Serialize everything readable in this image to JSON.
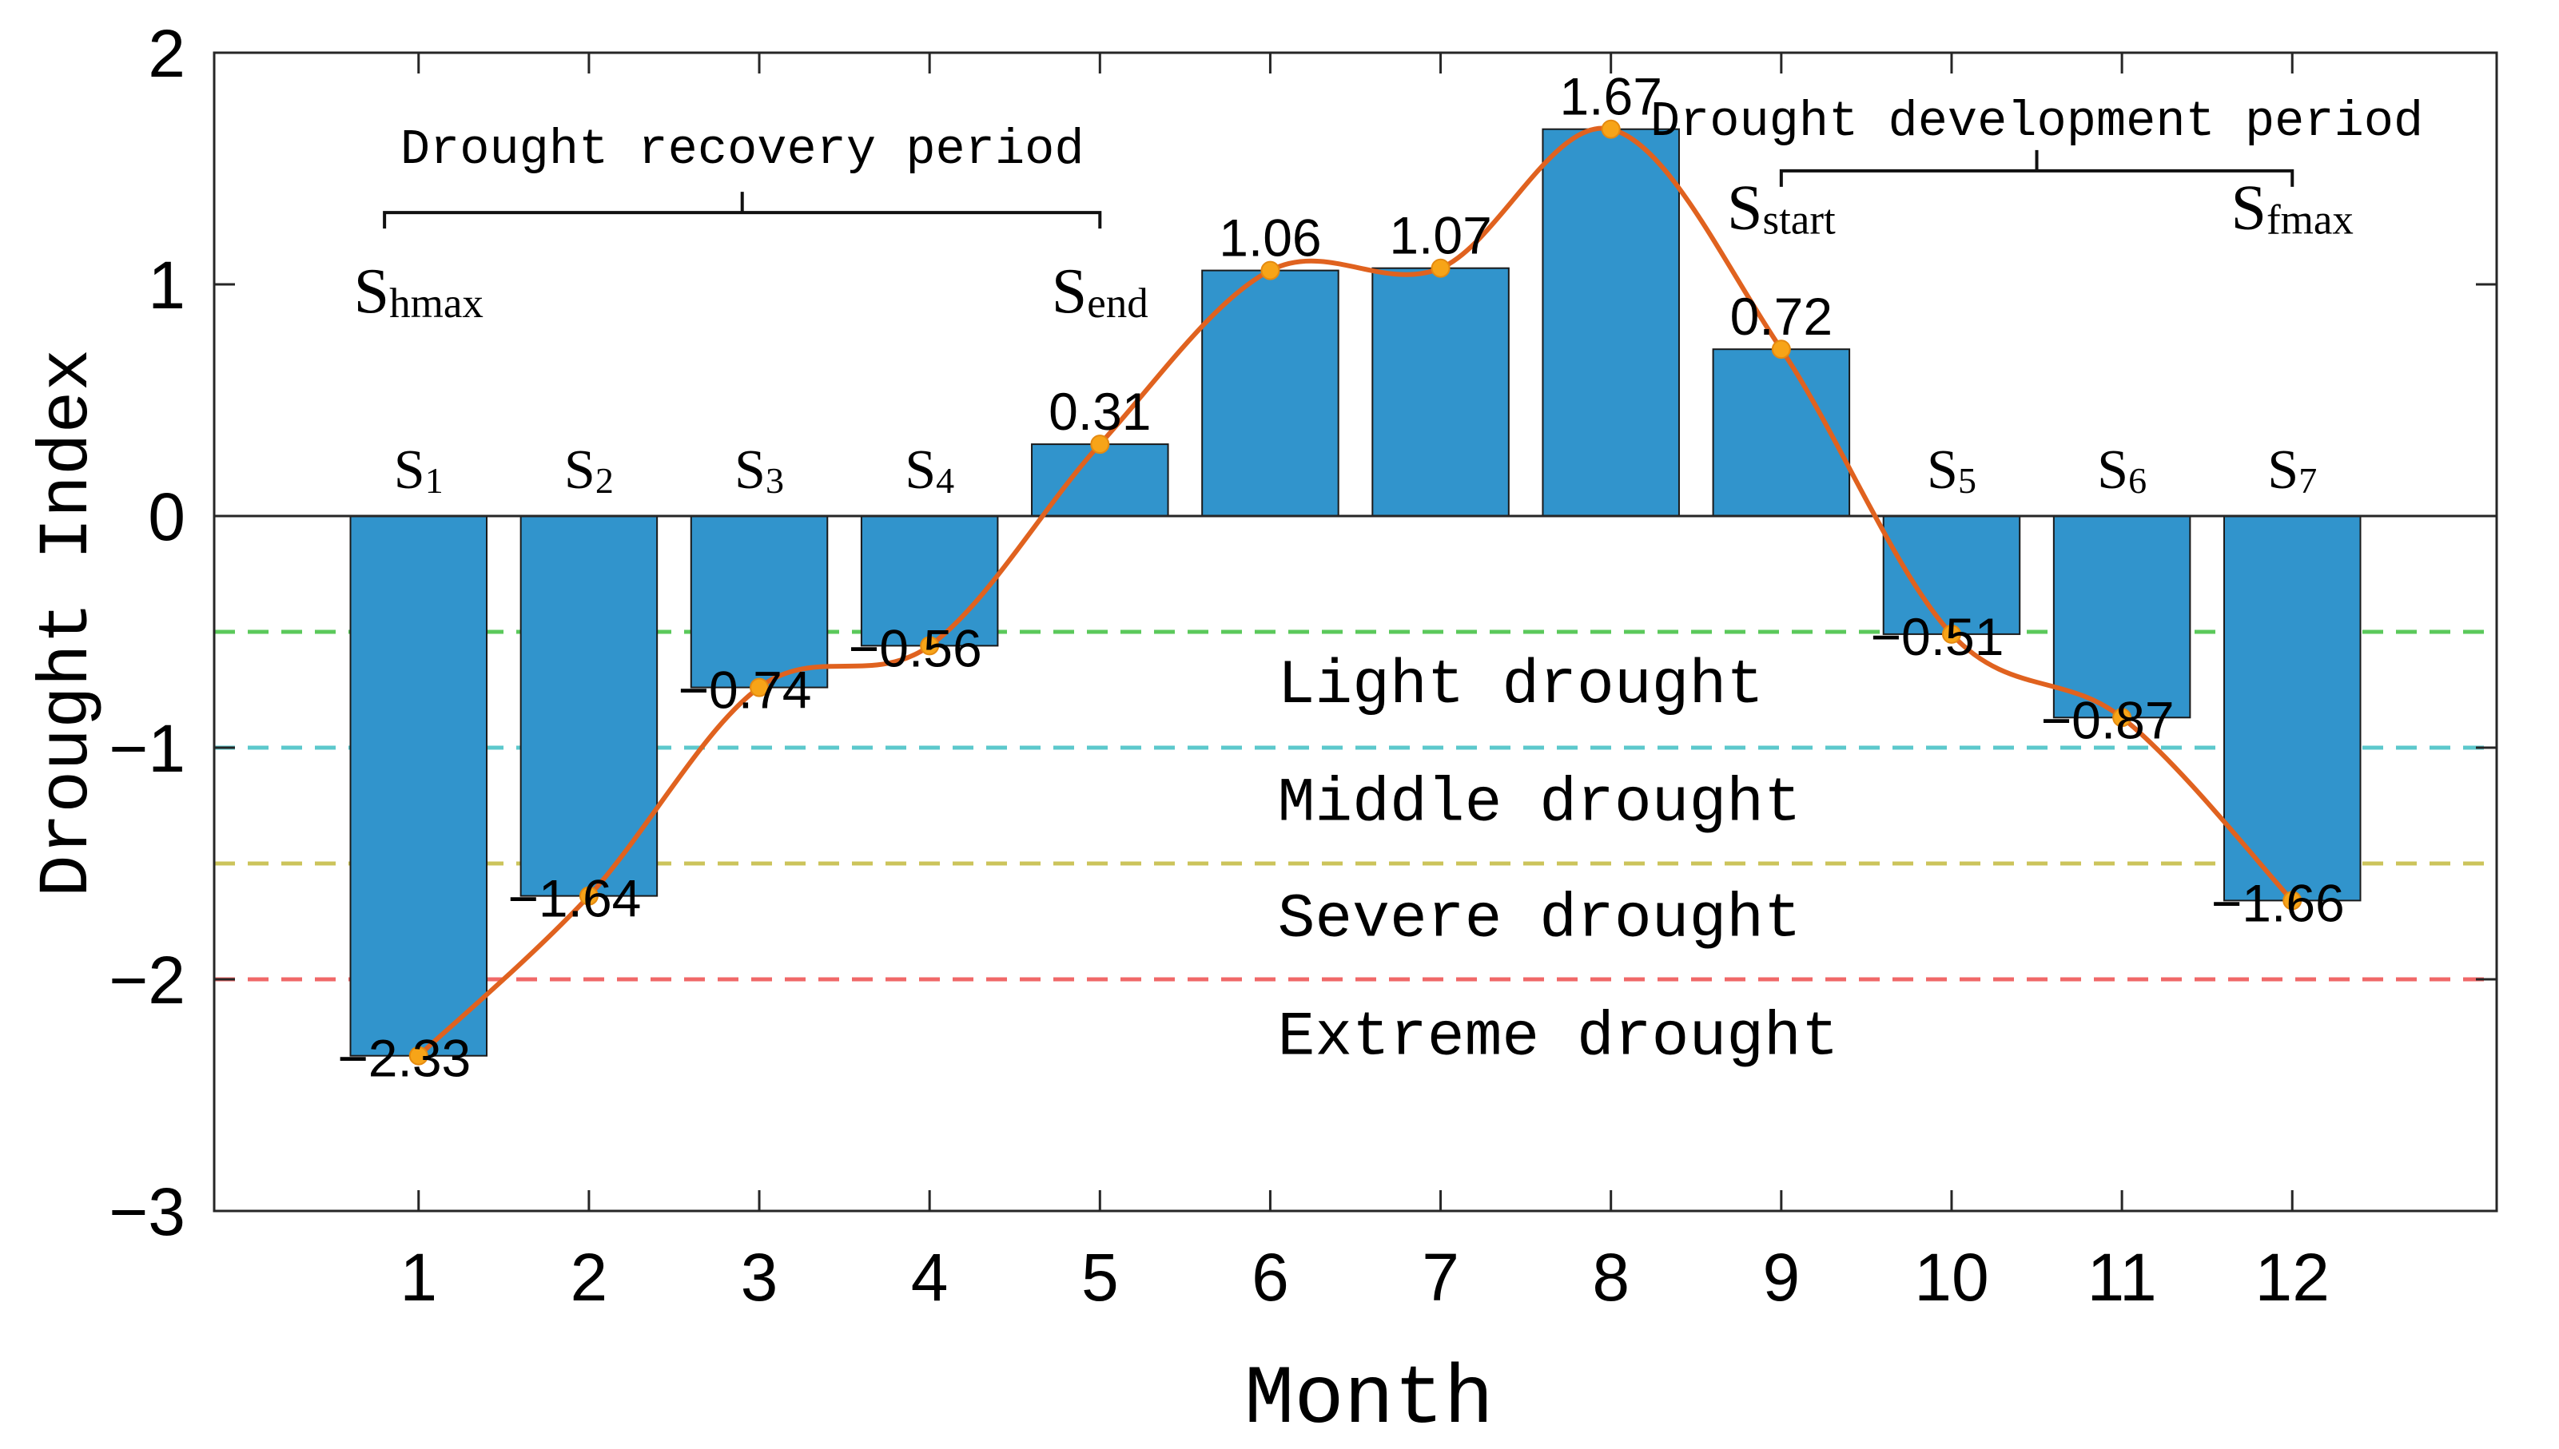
{
  "chart_data": {
    "type": "bar",
    "title": "",
    "xlabel": "Month",
    "ylabel": "Drought Index",
    "categories": [
      "1",
      "2",
      "3",
      "4",
      "5",
      "6",
      "7",
      "8",
      "9",
      "10",
      "11",
      "12"
    ],
    "values": [
      -2.33,
      -1.64,
      -0.74,
      -0.56,
      0.31,
      1.06,
      1.07,
      1.67,
      0.72,
      -0.51,
      -0.87,
      -1.66
    ],
    "value_labels": [
      "−2.33",
      "−1.64",
      "−0.74",
      "−0.56",
      "0.31",
      "1.06",
      "1.07",
      "1.67",
      "0.72",
      "−0.51",
      "−0.87",
      "−1.66"
    ],
    "ylim": [
      -3,
      2
    ],
    "xlim": [
      -0.2,
      13.2
    ],
    "yticks": [
      2,
      1,
      0,
      -1,
      -2,
      -3
    ],
    "ytick_labels": [
      "2",
      "1",
      "0",
      "−1",
      "−2",
      "−3"
    ],
    "grid": false,
    "bar_color": "#3194CC",
    "curve_color": "#E0621F",
    "marker_color": "#F7A418",
    "series": [
      {
        "name": "Drought Index",
        "kind": "bar",
        "values": [
          -2.33,
          -1.64,
          -0.74,
          -0.56,
          0.31,
          1.06,
          1.07,
          1.67,
          0.72,
          -0.51,
          -0.87,
          -1.66
        ]
      },
      {
        "name": "Smoothed curve",
        "kind": "line",
        "values": [
          -2.33,
          -1.64,
          -0.74,
          -0.56,
          0.31,
          1.06,
          1.07,
          1.67,
          0.72,
          -0.51,
          -0.87,
          -1.66
        ]
      }
    ],
    "threshold_lines": [
      {
        "y": -0.5,
        "color": "#5BC95B"
      },
      {
        "y": -1.0,
        "color": "#5CC8CC"
      },
      {
        "y": -1.5,
        "color": "#CCC45B"
      },
      {
        "y": -2.0,
        "color": "#F06868"
      }
    ],
    "zone_labels": [
      {
        "text": "Light drought",
        "x": 7.0,
        "y": -0.72
      },
      {
        "text": "Middle drought",
        "x": 7.0,
        "y": -1.23
      },
      {
        "text": "Severe drought",
        "x": 7.0,
        "y": -1.73
      },
      {
        "text": "Extreme drought",
        "x": 7.0,
        "y": -2.24
      }
    ],
    "state_labels": [
      {
        "main": "S",
        "sub": "1",
        "x": 1,
        "y": 0.12
      },
      {
        "main": "S",
        "sub": "2",
        "x": 2,
        "y": 0.12
      },
      {
        "main": "S",
        "sub": "3",
        "x": 3,
        "y": 0.12
      },
      {
        "main": "S",
        "sub": "4",
        "x": 4,
        "y": 0.12
      },
      {
        "main": "S",
        "sub": "5",
        "x": 10,
        "y": 0.12
      },
      {
        "main": "S",
        "sub": "6",
        "x": 11,
        "y": 0.12
      },
      {
        "main": "S",
        "sub": "7",
        "x": 12,
        "y": 0.12
      }
    ],
    "period_labels": [
      {
        "main": "S",
        "sub": "hmax",
        "x": 1.0,
        "y": 0.88
      },
      {
        "main": "S",
        "sub": "end",
        "x": 5.0,
        "y": 0.88
      },
      {
        "main": "S",
        "sub": "start",
        "x": 9.0,
        "y": 1.24
      },
      {
        "main": "S",
        "sub": "fmax",
        "x": 12.0,
        "y": 1.24
      }
    ],
    "periods": [
      {
        "text": "Drought recovery period",
        "x_start": 0.8,
        "x_end": 5.0,
        "y": 1.31,
        "text_y": 1.6
      },
      {
        "text": "Drought development period",
        "x_start": 9.0,
        "x_end": 12.0,
        "y": 1.49,
        "text_y": 1.72
      }
    ]
  }
}
